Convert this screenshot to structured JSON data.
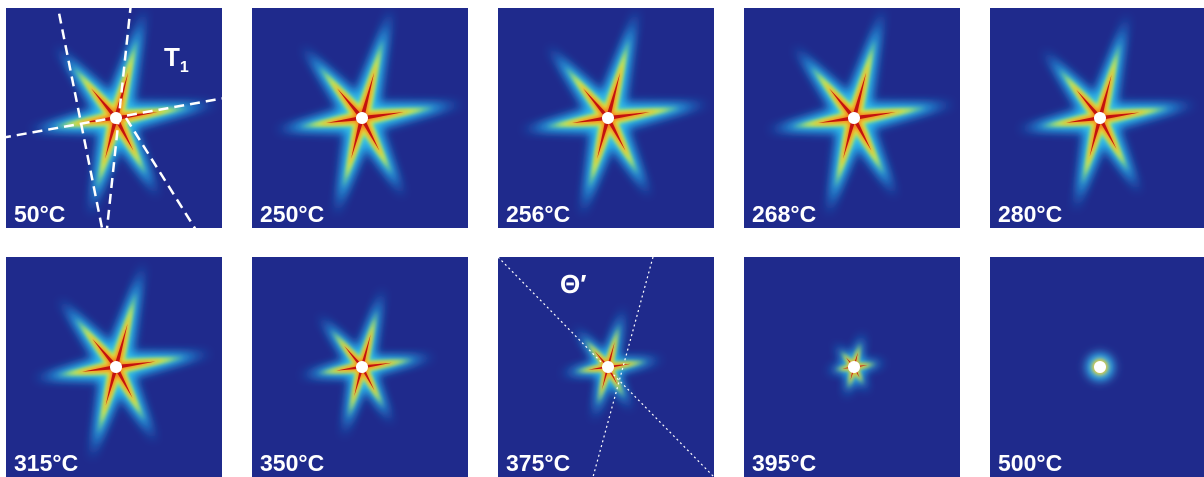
{
  "panels": [
    {
      "label": "50°C",
      "annotation": {
        "text": "T",
        "subscript": "1"
      }
    },
    {
      "label": "250°C"
    },
    {
      "label": "256°C"
    },
    {
      "label": "268°C"
    },
    {
      "label": "280°C"
    },
    {
      "label": "315°C"
    },
    {
      "label": "350°C"
    },
    {
      "label": "375°C",
      "annotation": {
        "text": "Θ′"
      }
    },
    {
      "label": "395°C"
    },
    {
      "label": "500°C"
    }
  ]
}
